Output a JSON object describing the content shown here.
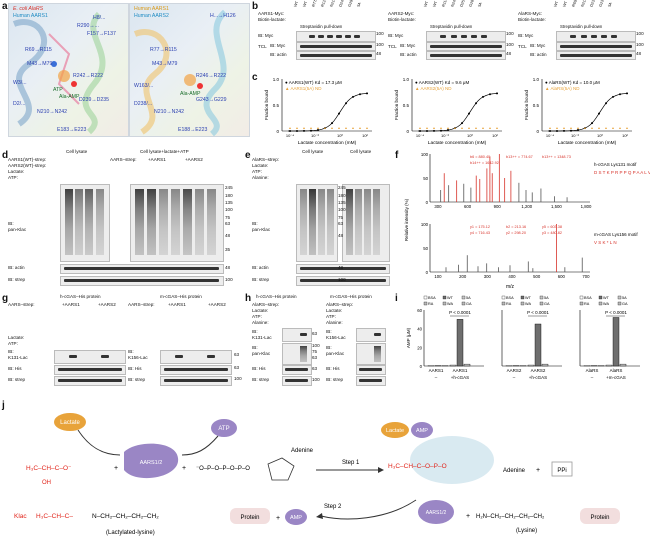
{
  "panels": {
    "a": {
      "letter": "a",
      "left": {
        "title1": "E. coli AlaRS",
        "title2": "Human AARS1",
        "labels": [
          "W3/...",
          "W3(M3)",
          "R69→R115",
          "M43→M79",
          "R75→...",
          "D2/...",
          "D239→D235",
          "E183→E223",
          "N210→N242",
          "ATP",
          "Ala-AMP",
          "R290→...",
          "F157→F137",
          "H8/...",
          "R242→R222"
        ]
      },
      "right": {
        "title1": "Human AARS1",
        "title2": "Human AARS2",
        "labels": [
          "R77→R115",
          "M43→M79",
          "R246→R222",
          "W163/...",
          "D238/...",
          "N210→N242",
          "E188→E223",
          "G243→G229",
          "Ala-AMP",
          "H...→H126"
        ]
      }
    },
    "b": {
      "letter": "b",
      "blots": [
        {
          "rows": [
            "AARS1-Myc:",
            "Biotin-lactate:"
          ],
          "top_label": "Streptavidin pull-down",
          "ib1": "IB: Myc",
          "tcl": "TCL",
          "ib2": "IB: Myc",
          "ib3": "IB: actin",
          "kda": [
            "100",
            "100",
            "48"
          ],
          "lanes": [
            "WT",
            "WT",
            "R77A",
            "R124A",
            "N210A",
            "D242A",
            "G298A",
            "5A"
          ]
        },
        {
          "rows": [
            "AARS2-Myc:",
            "Biotin-lactate:"
          ],
          "top_label": "Streptavidin pull-down",
          "ib1": "IB: Myc",
          "tcl": "TCL",
          "ib2": "IB: Myc",
          "ib3": "IB: actin",
          "kda": [
            "100",
            "100",
            "48"
          ],
          "lanes": [
            "WT",
            "WT",
            "R115A",
            "N242A",
            "D251A",
            "G289A",
            "5A"
          ]
        },
        {
          "rows": [
            "AlaRS-Myc:",
            "Biotin-lactate:"
          ],
          "top_label": "Streptavidin pull-down",
          "ib1": "IB: Myc",
          "tcl": "TCL",
          "ib2": "IB: Myc",
          "ib3": "IB: actin",
          "kda": [
            "100",
            "100",
            "48"
          ],
          "lanes": [
            "WT",
            "WT",
            "R69A",
            "N212A",
            "D235A",
            "G237A",
            "5A"
          ]
        }
      ]
    },
    "c": {
      "letter": "c",
      "plots": [
        {
          "legend1": "AARS1(WT) Kd = 17.3 μM",
          "legend2": "AARS1(5A) ND",
          "xlabel": "Lactate concentration (mM)",
          "ylabel": "Fraction bound"
        },
        {
          "legend1": "AARS2(WT) Kd = 9.6 μM",
          "legend2": "AARS2(5A) ND",
          "xlabel": "Lactate concentration (mM)",
          "ylabel": "Fraction bound"
        },
        {
          "legend1": "AlaRS(WT) Kd = 10.0 μM",
          "legend2": "AlaRS(5A) ND",
          "xlabel": "Lactate concentration (mM)",
          "ylabel": "Fraction bound"
        }
      ],
      "yticks": [
        "1.0",
        "0.5",
        "0"
      ],
      "xticks": [
        "10⁻⁴",
        "10⁻²",
        "10⁰",
        "10²"
      ]
    },
    "d": {
      "letter": "d",
      "h1": "Cell lysate",
      "h2": "Cell lysate+lactate+ATP",
      "rows": [
        "AARS1(WT)-strep:",
        "AARS2(WT)-strep:",
        "Lactate:",
        "ATP:"
      ],
      "sub": "AARS–strep:",
      "sub_a": "+AARS1",
      "sub_b": "+AARS2",
      "ib1": "IB:",
      "ib1b": "pan-Klac",
      "ib2": "IB: actin",
      "ib3": "IB: strep",
      "kda": [
        "245",
        "180",
        "135",
        "100",
        "75",
        "63",
        "48",
        "35",
        "48",
        "100"
      ]
    },
    "e": {
      "letter": "e",
      "h1": "Cell lysate",
      "h2": "Cell lysate",
      "rows": [
        "AlaRS–strep:",
        "Lactate:",
        "ATP:",
        "Alanine:"
      ],
      "ib1": "IB:",
      "ib1b": "pan-Klac",
      "ib2": "IB: actin",
      "ib3": "IB: strep",
      "kda": [
        "245",
        "180",
        "135",
        "100",
        "75",
        "63",
        "48",
        "48",
        "100"
      ]
    },
    "f": {
      "letter": "f",
      "top_title": "h-cGAS Lys131 motif",
      "top_seq": "D S T K P R P P Q P A A L V K",
      "bottom_title": "m-cGAS Lys156 motif",
      "bottom_seq": "V S K * L N",
      "ylabel": "Relative intensity (%)",
      "xlabel": "m/z",
      "top_xticks": [
        "300",
        "600",
        "900",
        "1,200",
        "1,500",
        "1,800"
      ],
      "bottom_xticks": [
        "100",
        "200",
        "300",
        "400",
        "500",
        "600",
        "700"
      ],
      "yticks": [
        "100",
        "50",
        "0"
      ],
      "top_peaks": [
        {
          "x": 220,
          "y": 25
        },
        {
          "x": 260,
          "y": 60
        },
        {
          "x": 310,
          "y": 35
        },
        {
          "x": 400,
          "y": 45
        },
        {
          "x": 480,
          "y": 38
        },
        {
          "x": 560,
          "y": 30
        },
        {
          "x": 620,
          "y": 55
        },
        {
          "x": 660,
          "y": 48
        },
        {
          "x": 740,
          "y": 70
        },
        {
          "x": 774,
          "y": 95
        },
        {
          "x": 800,
          "y": 60
        },
        {
          "x": 880,
          "y": 100
        },
        {
          "x": 940,
          "y": 50
        },
        {
          "x": 1010,
          "y": 65
        },
        {
          "x": 1100,
          "y": 40
        },
        {
          "x": 1180,
          "y": 25
        },
        {
          "x": 1250,
          "y": 20
        },
        {
          "x": 1348,
          "y": 28
        },
        {
          "x": 1500,
          "y": 12
        },
        {
          "x": 1642,
          "y": 10
        }
      ],
      "bottom_peaks": [
        {
          "x": 120,
          "y": 10
        },
        {
          "x": 175,
          "y": 15
        },
        {
          "x": 213,
          "y": 35
        },
        {
          "x": 260,
          "y": 12
        },
        {
          "x": 298,
          "y": 18
        },
        {
          "x": 350,
          "y": 10
        },
        {
          "x": 400,
          "y": 14
        },
        {
          "x": 480,
          "y": 22
        },
        {
          "x": 500,
          "y": 8
        },
        {
          "x": 603,
          "y": 100
        },
        {
          "x": 640,
          "y": 10
        },
        {
          "x": 716,
          "y": 30
        }
      ],
      "top_ann": [
        "b6 = 880.40",
        "b13++ = 774.67",
        "b13++ = 1348.73",
        "b14++ = 1642.92"
      ],
      "bottom_ann": [
        "y1 = 175.12",
        "b2 = 213.16",
        "y5 = 603.38",
        "y4 = 716.43",
        "y2 = 298.20",
        "y3 = 480.82"
      ]
    },
    "g": {
      "letter": "g",
      "h1": "h-cGAS–His protein",
      "h2": "m-cGAS–His protein",
      "row1": "AARS–strep:",
      "row1a": "+AARS1",
      "row1b": "+AARS2",
      "rows": [
        "Lactate:",
        "ATP:"
      ],
      "ib_left": [
        "IB:",
        "K131-Lac",
        "IB: His",
        "IB: strep"
      ],
      "ib_right": [
        "IB:",
        "K156-Lac",
        "IB: His",
        "IB: strep"
      ],
      "kda": [
        "63",
        "63",
        "100"
      ]
    },
    "h": {
      "letter": "h",
      "h1": "h-cGAS–His protein",
      "h2": "m-cGAS–His protein",
      "rows": [
        "AlaRS–strep:",
        "Lactate:",
        "ATP:",
        "Alanine:"
      ],
      "ib_left": [
        "IB:",
        "K131-Lac",
        "IB:",
        "pan-Klac",
        "IB: His",
        "IB: strep"
      ],
      "ib_right": [
        "IB:",
        "K156-Lac",
        "IB:",
        "pan-Klac",
        "IB: His",
        "IB: strep"
      ],
      "kda": [
        "63",
        "100",
        "75",
        "63",
        "63",
        "100"
      ]
    },
    "i": {
      "letter": "i",
      "ylabel": "AMP (μM)",
      "legends": [
        [
          "BSA",
          "WT",
          "5A",
          "RA",
          "WA",
          "GA"
        ],
        [
          "BSA",
          "WT",
          "5A",
          "RA",
          "WA",
          "GA"
        ],
        [
          "BSA",
          "WT",
          "5A",
          "RA",
          "WA",
          "GA"
        ]
      ],
      "pvals": [
        "P < 0.0001",
        "P < 0.0001",
        "P < 0.0001"
      ],
      "groups": [
        [
          "AARS1",
          "AARS1"
        ],
        [
          "AARS2",
          "AARS2"
        ],
        [
          "AlaRS",
          "AlaRS"
        ]
      ],
      "cond": [
        "–",
        "+h-cGAS",
        "–",
        "+h-cGAS",
        "–",
        "+m-cGAS"
      ],
      "yticks": [
        "60",
        "40",
        "20",
        "0"
      ],
      "chart_data": [
        {
          "type": "bar",
          "series": [
            {
              "name": "BSA",
              "values": [
                1
              ]
            },
            {
              "name": "WT",
              "values": [
                50
              ]
            },
            {
              "name": "5A",
              "values": [
                2
              ]
            }
          ],
          "ylim": [
            0,
            60
          ]
        },
        {
          "type": "bar",
          "series": [
            {
              "name": "BSA",
              "values": [
                1
              ]
            },
            {
              "name": "WT",
              "values": [
                45
              ]
            },
            {
              "name": "5A",
              "values": [
                2
              ]
            }
          ],
          "ylim": [
            0,
            60
          ]
        },
        {
          "type": "bar",
          "series": [
            {
              "name": "BSA",
              "values": [
                1
              ]
            },
            {
              "name": "WT",
              "values": [
                52
              ]
            },
            {
              "name": "5A",
              "values": [
                2
              ]
            }
          ],
          "ylim": [
            0,
            60
          ]
        }
      ]
    },
    "j": {
      "letter": "j",
      "lactate": "Lactate",
      "atp": "ATP",
      "amp": "AMP",
      "enzyme": "AARS1/2",
      "step1": "Step 1",
      "step2": "Step 2",
      "adenine": "Adenine",
      "ppi": "PPi",
      "protein": "Protein",
      "lysine": "(Lysine)",
      "klac": "Klac",
      "lactyl": "(Lactylated-lysine)",
      "plus": "+"
    }
  },
  "colors": {
    "lactate": "#e8a33a",
    "enzyme": "#9a86c5",
    "red": "#e1251b",
    "cgas": "#f2dede",
    "amp_cloud": "#cfe5ee"
  }
}
